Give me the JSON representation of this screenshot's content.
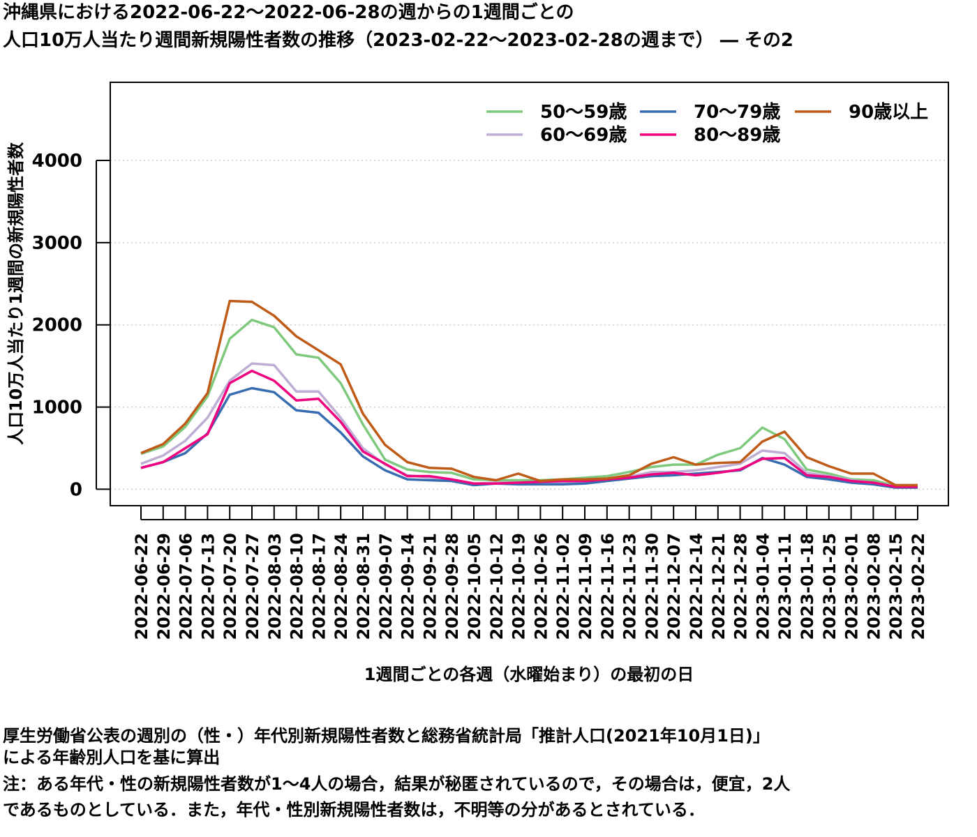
{
  "title_line1": "沖縄県における2022-06-22〜2022-06-28の週からの1週間ごとの",
  "title_line2": "人口10万人当たり週間新規陽性者数の推移（2023-02-22〜2023-02-28の週まで） ― その2",
  "notes": {
    "line1": "厚生労働省公表の週別の（性・）年代別新規陽性者数と総務省統計局「推計人口(2021年10月1日)」",
    "line2": "による年齢別人口を基に算出",
    "line3": "注：ある年代・性の新規陽性者数が1〜4人の場合，結果が秘匿されているので，その場合は，便宜，2人",
    "line4": "であるものとしている．また，年代・性別新規陽性者数は，不明等の分があるとされている．"
  },
  "chart_data": {
    "type": "line",
    "xlabel": "1週間ごとの各週（水曜始まり）の最初の日",
    "ylabel": "人口10万人当たり1週間の新規陽性者数",
    "ylim": [
      -200,
      4950
    ],
    "yticks": [
      0,
      1000,
      2000,
      3000,
      4000
    ],
    "grid": "horizontal dotted",
    "legend_position": "top-right",
    "categories": [
      "2022-06-22",
      "2022-06-29",
      "2022-07-06",
      "2022-07-13",
      "2022-07-20",
      "2022-07-27",
      "2022-08-03",
      "2022-08-10",
      "2022-08-17",
      "2022-08-24",
      "2022-08-31",
      "2022-09-07",
      "2022-09-14",
      "2022-09-21",
      "2022-09-28",
      "2022-10-05",
      "2022-10-12",
      "2022-10-19",
      "2022-10-26",
      "2022-11-02",
      "2022-11-09",
      "2022-11-16",
      "2022-11-23",
      "2022-11-30",
      "2022-12-07",
      "2022-12-14",
      "2022-12-21",
      "2022-12-28",
      "2023-01-04",
      "2023-01-11",
      "2023-01-18",
      "2023-01-25",
      "2023-02-01",
      "2023-02-08",
      "2023-02-15",
      "2023-02-22"
    ],
    "series": [
      {
        "name": "50〜59歳",
        "color": "#7fc97f",
        "values": [
          430,
          520,
          760,
          1130,
          1830,
          2060,
          1970,
          1640,
          1600,
          1290,
          790,
          360,
          240,
          210,
          200,
          120,
          110,
          110,
          110,
          120,
          140,
          160,
          210,
          270,
          300,
          300,
          420,
          500,
          750,
          610,
          240,
          190,
          120,
          110,
          40,
          40
        ]
      },
      {
        "name": "60〜69歳",
        "color": "#beaed4",
        "values": [
          310,
          410,
          590,
          870,
          1320,
          1530,
          1510,
          1190,
          1190,
          870,
          500,
          300,
          170,
          140,
          120,
          70,
          80,
          80,
          80,
          80,
          100,
          120,
          150,
          210,
          210,
          230,
          270,
          310,
          470,
          440,
          200,
          160,
          110,
          80,
          30,
          30
        ]
      },
      {
        "name": "70〜79歳",
        "color": "#386cb0",
        "values": [
          260,
          330,
          440,
          680,
          1150,
          1230,
          1180,
          960,
          930,
          690,
          400,
          230,
          120,
          110,
          100,
          50,
          70,
          60,
          60,
          60,
          70,
          100,
          130,
          160,
          170,
          190,
          210,
          230,
          380,
          300,
          150,
          120,
          80,
          60,
          20,
          20
        ]
      },
      {
        "name": "80〜89歳",
        "color": "#f0027f",
        "values": [
          260,
          330,
          500,
          670,
          1290,
          1440,
          1320,
          1080,
          1100,
          820,
          460,
          310,
          160,
          160,
          120,
          70,
          70,
          80,
          90,
          100,
          100,
          120,
          140,
          180,
          200,
          170,
          200,
          240,
          370,
          380,
          170,
          150,
          100,
          80,
          30,
          30
        ]
      },
      {
        "name": "90歳以上",
        "color": "#bf5b17",
        "values": [
          440,
          550,
          800,
          1170,
          2290,
          2280,
          2110,
          1860,
          1690,
          1520,
          920,
          540,
          330,
          260,
          250,
          150,
          110,
          190,
          100,
          120,
          120,
          130,
          170,
          310,
          390,
          300,
          320,
          330,
          580,
          700,
          390,
          280,
          190,
          190,
          50,
          50
        ]
      }
    ]
  }
}
